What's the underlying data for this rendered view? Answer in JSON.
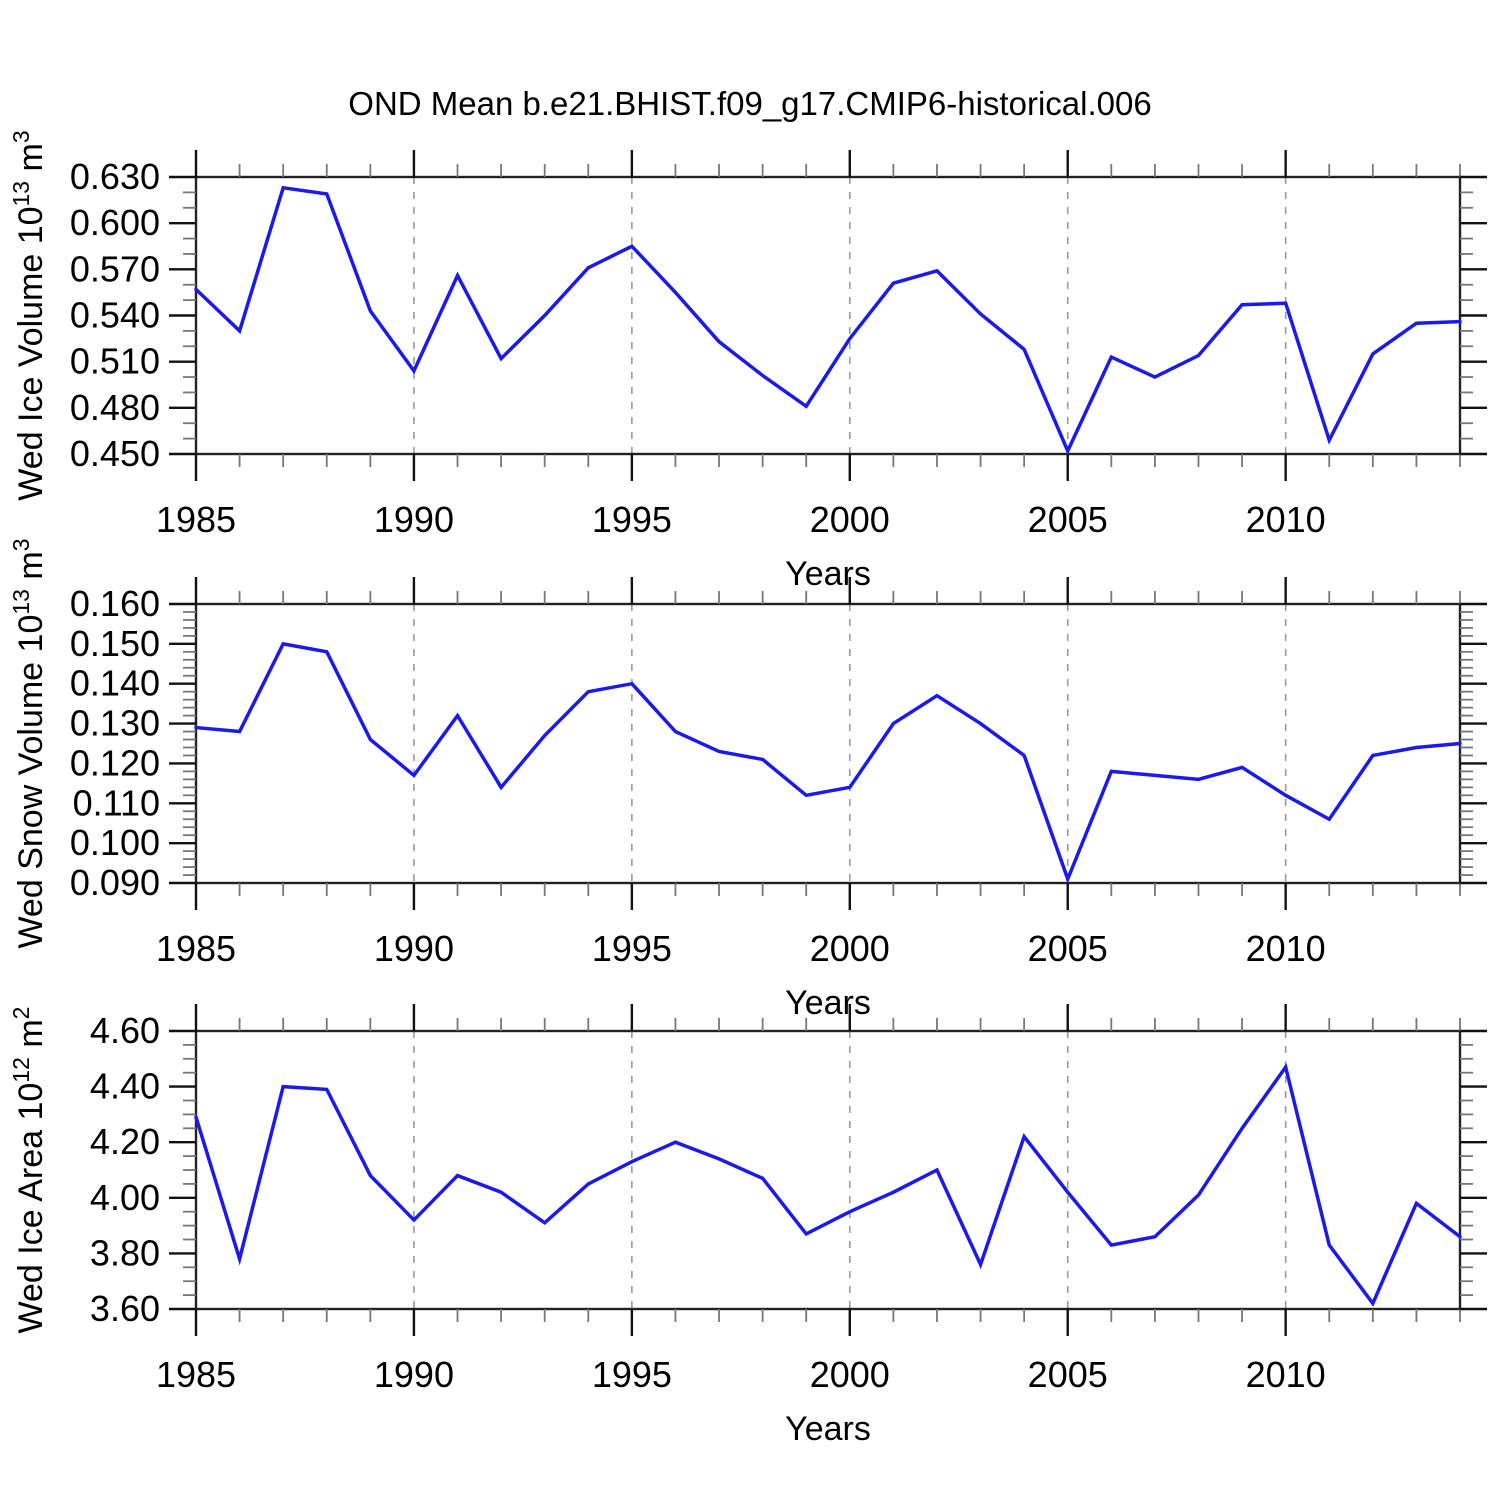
{
  "title": "OND Mean b.e21.BHIST.f09_g17.CMIP6-historical.006",
  "style": {
    "background": "#ffffff",
    "line_color": "#1a1aee",
    "frame_color": "#222222",
    "grid_color": "#999999",
    "major_tick_color": "#111111",
    "minor_tick_color": "#777777",
    "text_color": "#000000"
  },
  "chart_data": [
    {
      "name": "ice-volume",
      "type": "line",
      "ylabel_parts": [
        "Wed Ice Volume 10",
        "13",
        " m",
        "3"
      ],
      "xlabel": "Years",
      "xlim": [
        1985,
        2014
      ],
      "ylim": [
        0.45,
        0.63
      ],
      "xtick_values": [
        1985,
        1990,
        1995,
        2000,
        2005,
        2010
      ],
      "xtick_labels": [
        "1985",
        "1990",
        "1995",
        "2000",
        "2005",
        "2010"
      ],
      "x_minor_step": 1,
      "grid_x_values": [
        1990,
        1995,
        2000,
        2005,
        2010
      ],
      "ytick_values": [
        0.45,
        0.48,
        0.51,
        0.54,
        0.57,
        0.6,
        0.63
      ],
      "ytick_labels": [
        "0.450",
        "0.480",
        "0.510",
        "0.540",
        "0.570",
        "0.600",
        "0.630"
      ],
      "y_minor_step": 0.01,
      "x": [
        1985,
        1986,
        1987,
        1988,
        1989,
        1990,
        1991,
        1992,
        1993,
        1994,
        1995,
        1996,
        1997,
        1998,
        1999,
        2000,
        2001,
        2002,
        2003,
        2004,
        2005,
        2006,
        2007,
        2008,
        2009,
        2010,
        2011,
        2012,
        2013,
        2014
      ],
      "values": [
        0.557,
        0.53,
        0.623,
        0.619,
        0.543,
        0.504,
        0.566,
        0.512,
        0.54,
        0.571,
        0.585,
        0.555,
        0.523,
        0.501,
        0.481,
        0.525,
        0.561,
        0.569,
        0.541,
        0.518,
        0.452,
        0.513,
        0.5,
        0.514,
        0.547,
        0.548,
        0.459,
        0.515,
        0.535,
        0.536
      ]
    },
    {
      "name": "snow-volume",
      "type": "line",
      "ylabel_parts": [
        "Wed Snow Volume 10",
        "13",
        " m",
        "3"
      ],
      "xlabel": "Years",
      "xlim": [
        1985,
        2014
      ],
      "ylim": [
        0.09,
        0.16
      ],
      "xtick_values": [
        1985,
        1990,
        1995,
        2000,
        2005,
        2010
      ],
      "xtick_labels": [
        "1985",
        "1990",
        "1995",
        "2000",
        "2005",
        "2010"
      ],
      "x_minor_step": 1,
      "grid_x_values": [
        1990,
        1995,
        2000,
        2005,
        2010
      ],
      "ytick_values": [
        0.09,
        0.1,
        0.11,
        0.12,
        0.13,
        0.14,
        0.15,
        0.16
      ],
      "ytick_labels": [
        "0.090",
        "0.100",
        "0.110",
        "0.120",
        "0.130",
        "0.140",
        "0.150",
        "0.160"
      ],
      "y_minor_step": 0.002,
      "x": [
        1985,
        1986,
        1987,
        1988,
        1989,
        1990,
        1991,
        1992,
        1993,
        1994,
        1995,
        1996,
        1997,
        1998,
        1999,
        2000,
        2001,
        2002,
        2003,
        2004,
        2005,
        2006,
        2007,
        2008,
        2009,
        2010,
        2011,
        2012,
        2013,
        2014
      ],
      "values": [
        0.129,
        0.128,
        0.15,
        0.148,
        0.126,
        0.117,
        0.132,
        0.114,
        0.127,
        0.138,
        0.14,
        0.128,
        0.123,
        0.121,
        0.112,
        0.114,
        0.13,
        0.137,
        0.13,
        0.122,
        0.091,
        0.118,
        0.117,
        0.116,
        0.119,
        0.112,
        0.106,
        0.122,
        0.124,
        0.125
      ]
    },
    {
      "name": "ice-area",
      "type": "line",
      "ylabel_parts": [
        "Wed Ice Area 10",
        "12",
        " m",
        "2"
      ],
      "xlabel": "Years",
      "xlim": [
        1985,
        2014
      ],
      "ylim": [
        3.6,
        4.6
      ],
      "xtick_values": [
        1985,
        1990,
        1995,
        2000,
        2005,
        2010
      ],
      "xtick_labels": [
        "1985",
        "1990",
        "1995",
        "2000",
        "2005",
        "2010"
      ],
      "x_minor_step": 1,
      "grid_x_values": [
        1990,
        1995,
        2000,
        2005,
        2010
      ],
      "ytick_values": [
        3.6,
        3.8,
        4.0,
        4.2,
        4.4,
        4.6
      ],
      "ytick_labels": [
        "3.60",
        "3.80",
        "4.00",
        "4.20",
        "4.40",
        "4.60"
      ],
      "y_minor_step": 0.05,
      "x": [
        1985,
        1986,
        1987,
        1988,
        1989,
        1990,
        1991,
        1992,
        1993,
        1994,
        1995,
        1996,
        1997,
        1998,
        1999,
        2000,
        2001,
        2002,
        2003,
        2004,
        2005,
        2006,
        2007,
        2008,
        2009,
        2010,
        2011,
        2012,
        2013,
        2014
      ],
      "values": [
        4.29,
        3.78,
        4.4,
        4.39,
        4.08,
        3.92,
        4.08,
        4.02,
        3.91,
        4.05,
        4.13,
        4.2,
        4.14,
        4.07,
        3.87,
        3.95,
        4.02,
        4.1,
        3.76,
        4.22,
        4.02,
        3.83,
        3.86,
        4.01,
        4.25,
        4.47,
        3.83,
        3.62,
        3.98,
        3.86
      ]
    }
  ]
}
